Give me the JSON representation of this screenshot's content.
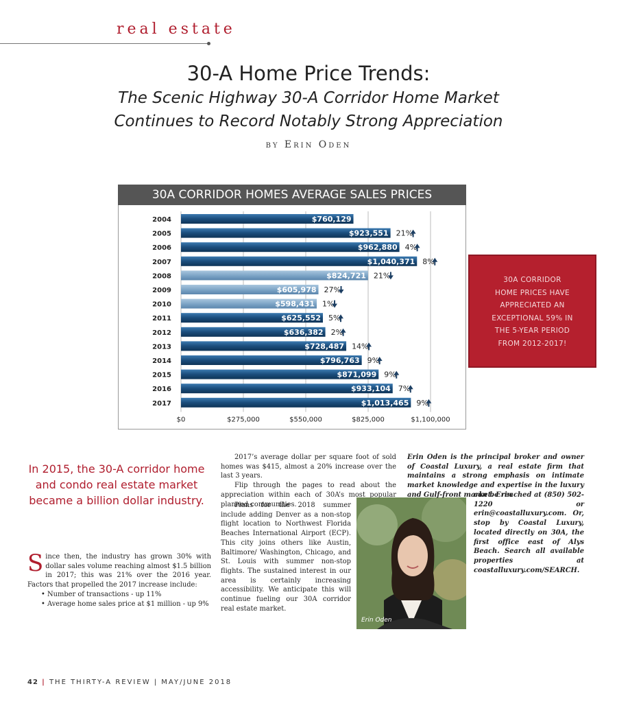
{
  "section_label": "real estate",
  "headline": "30-A Home Price Trends:",
  "subhead_line1": "The Scenic Highway 30-A Corridor Home Market",
  "subhead_line2": "Continues to Record Notably Strong Appreciation",
  "byline": "by Erin Oden",
  "chart_data": {
    "type": "bar",
    "title": "30A CORRIDOR HOMES AVERAGE SALES PRICES",
    "orientation": "horizontal",
    "categories": [
      "2004",
      "2005",
      "2006",
      "2007",
      "2008",
      "2009",
      "2010",
      "2011",
      "2012",
      "2013",
      "2014",
      "2015",
      "2016",
      "2017"
    ],
    "values": [
      760129,
      923551,
      962880,
      1040371,
      824721,
      605978,
      598431,
      625552,
      636382,
      728487,
      796763,
      871099,
      933104,
      1013465
    ],
    "value_labels": [
      "$760,129",
      "$923,551",
      "$962,880",
      "$1,040,371",
      "$824,721",
      "$605,978",
      "$598,431",
      "$625,552",
      "$636,382",
      "$728,487",
      "$796,763",
      "$871,099",
      "$933,104",
      "$1,013,465"
    ],
    "changes": [
      "",
      "21%",
      "4%",
      "8%",
      "21%",
      "27%",
      "1%",
      "5%",
      "2%",
      "14%",
      "9%",
      "9%",
      "7%",
      "9%"
    ],
    "directions": [
      "",
      "up",
      "up",
      "up",
      "down",
      "down",
      "down",
      "up",
      "up",
      "up",
      "up",
      "up",
      "up",
      "up"
    ],
    "xticks": [
      "$0",
      "$275,000",
      "$550,000",
      "$825,000",
      "$1,100,000"
    ],
    "xlim": [
      0,
      1100000
    ],
    "grid": true,
    "colors": {
      "dark_bar": "#1b4d7c",
      "light_bar": "#7fa6c7",
      "header": "#555555"
    }
  },
  "callout": {
    "lines": [
      "30A CORRIDOR",
      "HOME PRICES HAVE",
      "APPRECIATED AN",
      "EXCEPTIONAL 59% IN",
      "THE 5-YEAR PERIOD",
      "FROM 2012-2017!"
    ],
    "color": "#b5202e"
  },
  "pull_quote": "In 2015, the 30-A corridor home and condo real estate market became a billion dollar industry.",
  "col1": {
    "dropcap": "S",
    "text": "ince then, the industry has grown 30% with dollar sales volume reaching almost $1.5 billion in 2017; this was 21% over the 2016 year. Factors that propelled the 2017 increase include:",
    "bullets": [
      "• Number of transactions - up 11%",
      "• Average home sales price at $1 million - up 9%"
    ]
  },
  "col2": {
    "p1": "2017’s average dollar per square foot of sold homes was $415, almost a 20% increase over the last 3 years.",
    "p2": "Flip through the pages to read about the appreciation within each of 30A’s most popular planned communities.",
    "p3": "Plans for the 2018 summer include adding Denver as a non-stop flight location to Northwest Florida Beaches International Airport (ECP). This city joins others like Austin, Baltimore/ Washington, Chicago, and St. Louis with summer non-stop flights. The sustained interest in our area is certainly increasing accessibility. We anticipate this will continue fueling our 30A corridor real estate market."
  },
  "photo_caption": "Erin Oden",
  "bio": {
    "top": "Erin Oden is the principal broker and owner of Coastal Luxury, a real estate firm that maintains a strong emphasis on intimate market knowledge and expertise in the luxury and Gulf-front market. Erin",
    "bottom": "can be reached at (850) 502-1220 or erin@coastalluxury.com. Or, stop by Coastal Luxury, located directly on 30A, the first office east of Alys Beach. Search all available properties at coastalluxury.com/SEARCH."
  },
  "footer": {
    "page": "42",
    "text": "THE THIRTY-A REVIEW | MAY/JUNE 2018"
  }
}
